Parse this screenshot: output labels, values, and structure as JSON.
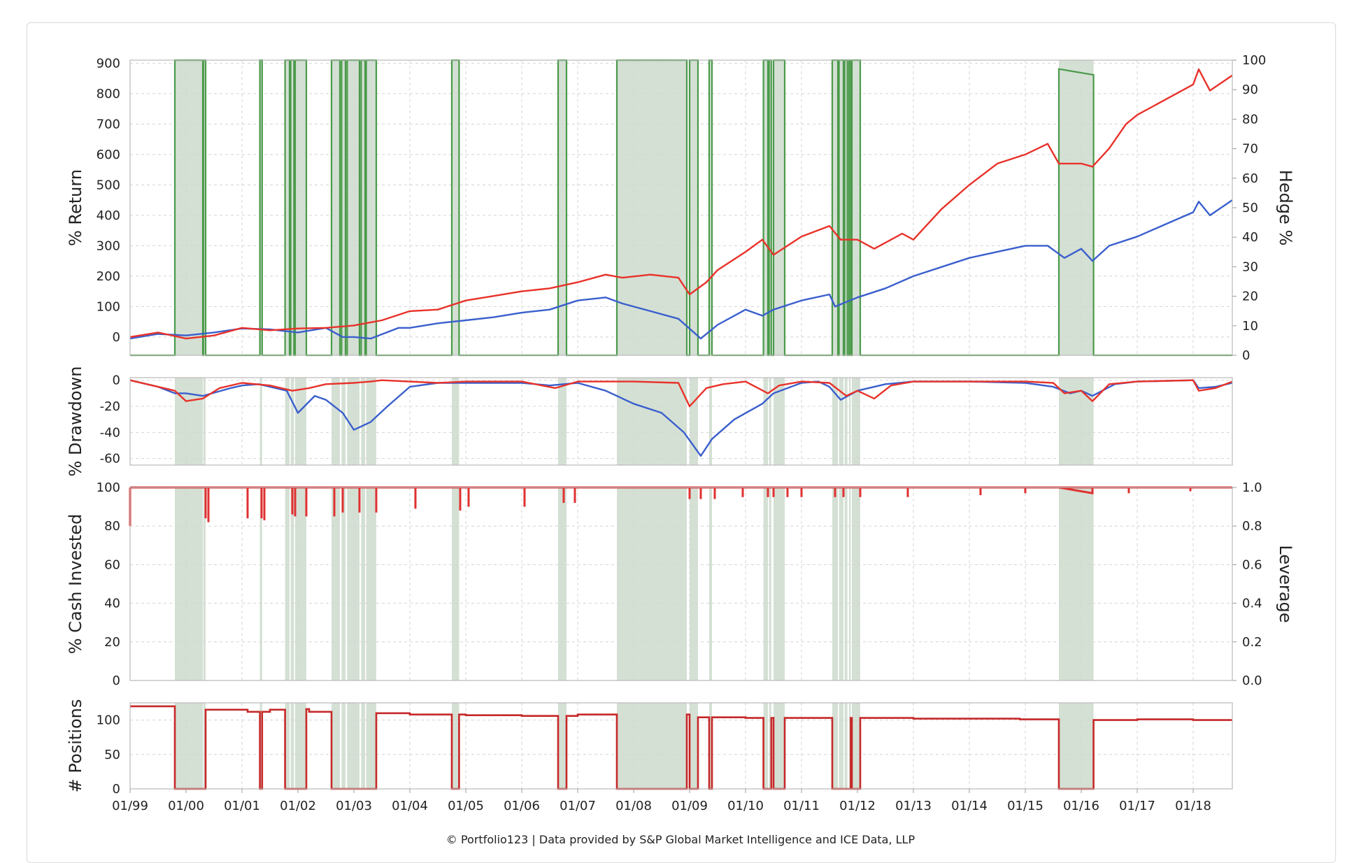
{
  "colors": {
    "portfolio": "#e8322a",
    "benchmark": "#3a5fcd",
    "hedge_line": "#4a9a4a",
    "hedge_band": "#a9c1a9",
    "cash": "#e03030",
    "positions": "#c62828"
  },
  "credit": "© Portfolio123 | Data provided by S&P Global Market Intelligence and ICE Data, LLP",
  "chart_data": [
    {
      "type": "line",
      "ylabel": "% Return",
      "y2label": "Hedge %",
      "ylim": [
        -60,
        910
      ],
      "y2lim": [
        0,
        100
      ],
      "yticks": [
        0,
        100,
        200,
        300,
        400,
        500,
        600,
        700,
        800,
        900
      ],
      "y2ticks": [
        0,
        10,
        20,
        30,
        40,
        50,
        60,
        70,
        80,
        90,
        100
      ],
      "xlim": [
        1999.0,
        2018.7
      ],
      "grid": true,
      "series": [
        {
          "color": "#e8322a",
          "x": [
            1999.0,
            1999.5,
            2000.0,
            2000.5,
            2001.0,
            2001.5,
            2002.0,
            2002.5,
            2003.0,
            2003.5,
            2004.0,
            2004.5,
            2005.0,
            2005.5,
            2006.0,
            2006.5,
            2007.0,
            2007.5,
            2007.8,
            2008.3,
            2008.8,
            2009.0,
            2009.3,
            2009.5,
            2010.0,
            2010.3,
            2010.5,
            2011.0,
            2011.5,
            2011.7,
            2012.0,
            2012.3,
            2012.8,
            2013.0,
            2013.5,
            2014.0,
            2014.5,
            2015.0,
            2015.4,
            2015.6,
            2016.0,
            2016.2,
            2016.5,
            2016.8,
            2017.0,
            2017.5,
            2018.0,
            2018.1,
            2018.3,
            2018.7
          ],
          "y": [
            0,
            15,
            -5,
            5,
            30,
            22,
            28,
            30,
            38,
            55,
            85,
            90,
            120,
            135,
            150,
            160,
            180,
            205,
            195,
            205,
            195,
            140,
            180,
            220,
            280,
            320,
            270,
            330,
            365,
            320,
            320,
            290,
            340,
            320,
            420,
            500,
            570,
            600,
            635,
            570,
            570,
            560,
            620,
            700,
            730,
            780,
            830,
            880,
            810,
            860
          ]
        },
        {
          "color": "#3a5fcd",
          "x": [
            1999.0,
            1999.5,
            2000.0,
            2000.5,
            2001.0,
            2001.5,
            2002.0,
            2002.5,
            2002.8,
            2003.0,
            2003.3,
            2003.8,
            2004.0,
            2004.5,
            2005.0,
            2005.5,
            2006.0,
            2006.5,
            2007.0,
            2007.5,
            2007.8,
            2008.3,
            2008.8,
            2009.2,
            2009.5,
            2010.0,
            2010.3,
            2010.5,
            2011.0,
            2011.5,
            2011.6,
            2012.0,
            2012.5,
            2013.0,
            2013.5,
            2014.0,
            2014.5,
            2015.0,
            2015.4,
            2015.7,
            2016.0,
            2016.2,
            2016.5,
            2017.0,
            2017.5,
            2018.0,
            2018.1,
            2018.3,
            2018.7
          ],
          "y": [
            -5,
            10,
            5,
            15,
            28,
            25,
            15,
            30,
            0,
            0,
            -5,
            30,
            30,
            45,
            55,
            65,
            80,
            90,
            120,
            130,
            110,
            85,
            60,
            -5,
            40,
            90,
            70,
            90,
            120,
            140,
            100,
            130,
            160,
            200,
            230,
            260,
            280,
            300,
            300,
            260,
            290,
            250,
            300,
            330,
            370,
            410,
            445,
            400,
            450
          ]
        }
      ],
      "hedge": {
        "color": "#4a9a4a",
        "periods": [
          [
            1999.8,
            2000.3,
            100
          ],
          [
            2000.31,
            2000.35,
            100
          ],
          [
            2001.32,
            2001.36,
            100
          ],
          [
            2001.77,
            2001.85,
            100
          ],
          [
            2001.87,
            2001.93,
            100
          ],
          [
            2001.95,
            2002.15,
            100
          ],
          [
            2002.6,
            2002.75,
            100
          ],
          [
            2002.78,
            2002.85,
            100
          ],
          [
            2002.88,
            2003.1,
            100
          ],
          [
            2003.13,
            2003.2,
            100
          ],
          [
            2003.22,
            2003.4,
            100
          ],
          [
            2004.75,
            2004.88,
            100
          ],
          [
            2006.65,
            2006.8,
            100
          ],
          [
            2007.7,
            2008.95,
            100
          ],
          [
            2009.0,
            2009.15,
            100
          ],
          [
            2009.35,
            2009.4,
            100
          ],
          [
            2010.32,
            2010.4,
            100
          ],
          [
            2010.42,
            2010.46,
            100
          ],
          [
            2010.5,
            2010.7,
            100
          ],
          [
            2011.55,
            2011.65,
            100
          ],
          [
            2011.67,
            2011.75,
            100
          ],
          [
            2011.77,
            2011.82,
            100
          ],
          [
            2011.85,
            2011.88,
            100
          ],
          [
            2011.9,
            2012.05,
            100
          ],
          [
            2015.6,
            2016.22,
            97
          ]
        ]
      }
    },
    {
      "type": "line",
      "ylabel": "% Drawdown",
      "ylim": [
        -65,
        2
      ],
      "yticks": [
        0,
        -20,
        -40,
        -60
      ],
      "xlim": [
        1999.0,
        2018.7
      ],
      "grid": true,
      "series": [
        {
          "color": "#e8322a",
          "x": [
            1999.0,
            1999.5,
            1999.8,
            2000.0,
            2000.3,
            2000.6,
            2001.0,
            2001.5,
            2001.9,
            2002.2,
            2002.5,
            2003.0,
            2003.3,
            2003.5,
            2004.5,
            2005.0,
            2006.0,
            2006.6,
            2007.0,
            2008.0,
            2008.8,
            2009.0,
            2009.3,
            2009.6,
            2010.0,
            2010.4,
            2010.6,
            2011.0,
            2011.5,
            2011.8,
            2012.0,
            2012.3,
            2012.6,
            2013.0,
            2014.0,
            2015.0,
            2015.5,
            2015.7,
            2016.0,
            2016.2,
            2016.5,
            2017.0,
            2018.0,
            2018.1,
            2018.4,
            2018.7
          ],
          "y": [
            0,
            -5,
            -8,
            -16,
            -14,
            -6,
            -2,
            -4,
            -8,
            -6,
            -3,
            -2,
            -1,
            0,
            -2,
            -1,
            -1,
            -6,
            -1,
            -1,
            -2,
            -20,
            -6,
            -3,
            -1,
            -10,
            -4,
            -1,
            -2,
            -12,
            -8,
            -14,
            -4,
            -1,
            -1,
            -1,
            -2,
            -10,
            -8,
            -16,
            -3,
            -1,
            0,
            -8,
            -6,
            -1
          ]
        },
        {
          "color": "#3a5fcd",
          "x": [
            1999.0,
            1999.5,
            1999.8,
            2000.0,
            2000.3,
            2000.8,
            2001.0,
            2001.3,
            2001.8,
            2002.0,
            2002.3,
            2002.5,
            2002.8,
            2003.0,
            2003.3,
            2003.6,
            2004.0,
            2004.5,
            2005.0,
            2006.0,
            2006.5,
            2007.0,
            2007.5,
            2008.0,
            2008.5,
            2008.9,
            2009.2,
            2009.4,
            2009.8,
            2010.3,
            2010.5,
            2011.0,
            2011.3,
            2011.5,
            2011.7,
            2012.0,
            2012.5,
            2013.0,
            2014.0,
            2015.0,
            2015.5,
            2015.8,
            2016.0,
            2016.2,
            2016.6,
            2017.0,
            2018.0,
            2018.1,
            2018.4,
            2018.7
          ],
          "y": [
            0,
            -5,
            -10,
            -10,
            -12,
            -6,
            -4,
            -3,
            -8,
            -25,
            -12,
            -15,
            -25,
            -38,
            -32,
            -20,
            -5,
            -2,
            -2,
            -2,
            -4,
            -2,
            -8,
            -18,
            -25,
            -40,
            -58,
            -45,
            -30,
            -18,
            -10,
            -2,
            -1,
            -5,
            -15,
            -8,
            -3,
            -1,
            -1,
            -2,
            -5,
            -10,
            -8,
            -12,
            -3,
            -1,
            0,
            -6,
            -5,
            -2
          ]
        }
      ]
    },
    {
      "type": "line",
      "ylabel": "% Cash Invested",
      "y2label": "Leverage",
      "ylim": [
        0,
        100
      ],
      "y2lim": [
        0.0,
        1.0
      ],
      "yticks": [
        0,
        20,
        40,
        60,
        80,
        100
      ],
      "y2ticks": [
        "0.0",
        "0.2",
        "0.4",
        "0.6",
        "0.8",
        "1.0"
      ],
      "xlim": [
        1999.0,
        2018.7
      ],
      "grid": true,
      "series": [
        {
          "color": "#e03030",
          "baseline": 100,
          "dips": [
            [
              1999.0,
              80
            ],
            [
              2000.35,
              84
            ],
            [
              2000.4,
              82
            ],
            [
              2001.1,
              84
            ],
            [
              2001.35,
              84
            ],
            [
              2001.4,
              83
            ],
            [
              2001.9,
              86
            ],
            [
              2001.95,
              85
            ],
            [
              2002.15,
              85
            ],
            [
              2002.65,
              85
            ],
            [
              2002.8,
              87
            ],
            [
              2003.1,
              87
            ],
            [
              2003.4,
              87
            ],
            [
              2004.1,
              89
            ],
            [
              2004.9,
              88
            ],
            [
              2005.05,
              90
            ],
            [
              2006.05,
              90
            ],
            [
              2006.75,
              92
            ],
            [
              2006.95,
              92
            ],
            [
              2009.0,
              94
            ],
            [
              2009.2,
              94
            ],
            [
              2009.45,
              94
            ],
            [
              2009.95,
              95
            ],
            [
              2010.4,
              95
            ],
            [
              2010.5,
              95
            ],
            [
              2010.75,
              95
            ],
            [
              2011.0,
              95
            ],
            [
              2011.6,
              95
            ],
            [
              2011.75,
              95
            ],
            [
              2012.05,
              95
            ],
            [
              2012.9,
              95
            ],
            [
              2014.2,
              96
            ],
            [
              2015.0,
              97
            ],
            [
              2016.85,
              97
            ],
            [
              2017.95,
              98
            ]
          ],
          "dip_2016": [
            2015.6,
            2016.2,
            97
          ]
        }
      ]
    },
    {
      "type": "line",
      "ylabel": "# Positions",
      "ylim": [
        0,
        125
      ],
      "yticks": [
        0,
        50,
        100
      ],
      "xlim": [
        1999.0,
        2018.7
      ],
      "xticks": [
        "01/99",
        "01/00",
        "01/01",
        "01/02",
        "01/03",
        "01/04",
        "01/05",
        "01/06",
        "01/07",
        "01/08",
        "01/09",
        "01/10",
        "01/11",
        "01/12",
        "01/13",
        "01/14",
        "01/15",
        "01/16",
        "01/17",
        "01/18"
      ],
      "grid": true,
      "series": [
        {
          "color": "#c62828",
          "levels": [
            [
              1999.0,
              120
            ],
            [
              1999.8,
              122
            ],
            [
              2000.35,
              115
            ],
            [
              2001.1,
              112
            ],
            [
              2001.5,
              115
            ],
            [
              2001.8,
              116
            ],
            [
              2002.2,
              112
            ],
            [
              2003.4,
              110
            ],
            [
              2004.0,
              108
            ],
            [
              2005.0,
              107
            ],
            [
              2006.0,
              106
            ],
            [
              2006.8,
              106
            ],
            [
              2007.0,
              108
            ],
            [
              2009.1,
              104
            ],
            [
              2010.0,
              103
            ],
            [
              2011.0,
              103
            ],
            [
              2012.0,
              103
            ],
            [
              2013.0,
              102
            ],
            [
              2014.0,
              102
            ],
            [
              2014.9,
              101
            ],
            [
              2016.22,
              100
            ],
            [
              2017.0,
              101
            ],
            [
              2018.0,
              100
            ],
            [
              2018.7,
              100
            ]
          ],
          "zero_periods": [
            [
              1999.8,
              2000.35
            ],
            [
              2001.32,
              2001.36
            ],
            [
              2001.77,
              2002.15
            ],
            [
              2002.6,
              2003.4
            ],
            [
              2004.75,
              2004.88
            ],
            [
              2006.65,
              2006.8
            ],
            [
              2007.7,
              2008.95
            ],
            [
              2009.0,
              2009.15
            ],
            [
              2009.35,
              2009.4
            ],
            [
              2010.32,
              2010.46
            ],
            [
              2010.5,
              2010.7
            ],
            [
              2011.55,
              2011.88
            ],
            [
              2011.9,
              2012.05
            ],
            [
              2015.6,
              2016.22
            ]
          ]
        }
      ]
    }
  ]
}
